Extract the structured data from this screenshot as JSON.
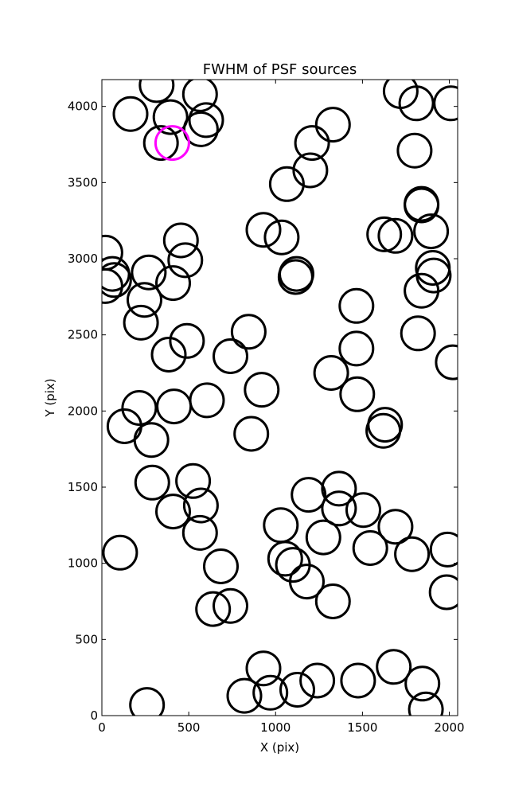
{
  "chart_data": {
    "type": "scatter",
    "title": "FWHM of PSF sources",
    "xlabel": "X (pix)",
    "ylabel": "Y (pix)",
    "xlim": [
      0,
      2048
    ],
    "ylim": [
      0,
      4176
    ],
    "xticks": [
      0,
      500,
      1000,
      1500,
      2000
    ],
    "yticks": [
      0,
      500,
      1000,
      1500,
      2000,
      2500,
      3000,
      3500,
      4000
    ],
    "grid": false,
    "marker": "open-circle",
    "series": [
      {
        "color": "#000000",
        "points": [
          [
            165,
            3950
          ],
          [
            315,
            4140
          ],
          [
            395,
            3930
          ],
          [
            565,
            4080
          ],
          [
            570,
            3850
          ],
          [
            600,
            3910
          ],
          [
            340,
            3760
          ],
          [
            20,
            3040
          ],
          [
            20,
            2820
          ],
          [
            60,
            2900
          ],
          [
            70,
            2860
          ],
          [
            270,
            2910
          ],
          [
            245,
            2730
          ],
          [
            225,
            2580
          ],
          [
            455,
            3120
          ],
          [
            480,
            2990
          ],
          [
            410,
            2840
          ],
          [
            385,
            2370
          ],
          [
            490,
            2460
          ],
          [
            740,
            2360
          ],
          [
            845,
            2520
          ],
          [
            920,
            2140
          ],
          [
            215,
            2020
          ],
          [
            415,
            2030
          ],
          [
            605,
            2070
          ],
          [
            130,
            1900
          ],
          [
            285,
            1810
          ],
          [
            860,
            1850
          ],
          [
            290,
            1530
          ],
          [
            525,
            1540
          ],
          [
            570,
            1380
          ],
          [
            410,
            1340
          ],
          [
            565,
            1200
          ],
          [
            685,
            980
          ],
          [
            105,
            1070
          ],
          [
            640,
            700
          ],
          [
            740,
            720
          ],
          [
            260,
            70
          ],
          [
            1030,
            1250
          ],
          [
            1055,
            1030
          ],
          [
            1100,
            990
          ],
          [
            1180,
            880
          ],
          [
            1190,
            1450
          ],
          [
            1275,
            1170
          ],
          [
            1365,
            1490
          ],
          [
            1365,
            1360
          ],
          [
            1505,
            1350
          ],
          [
            1545,
            1100
          ],
          [
            1690,
            1240
          ],
          [
            1785,
            1060
          ],
          [
            1990,
            1090
          ],
          [
            1985,
            810
          ],
          [
            1330,
            750
          ],
          [
            930,
            310
          ],
          [
            820,
            130
          ],
          [
            970,
            150
          ],
          [
            1125,
            170
          ],
          [
            1240,
            230
          ],
          [
            1475,
            230
          ],
          [
            1680,
            320
          ],
          [
            1845,
            210
          ],
          [
            1865,
            40
          ],
          [
            930,
            3190
          ],
          [
            1035,
            3140
          ],
          [
            1115,
            2880
          ],
          [
            1120,
            2900
          ],
          [
            1065,
            3490
          ],
          [
            1200,
            3580
          ],
          [
            1210,
            3760
          ],
          [
            1330,
            3880
          ],
          [
            1465,
            2690
          ],
          [
            1465,
            2410
          ],
          [
            1470,
            2110
          ],
          [
            1320,
            2250
          ],
          [
            1630,
            1910
          ],
          [
            1620,
            1870
          ],
          [
            1625,
            3160
          ],
          [
            1690,
            3150
          ],
          [
            1840,
            3360
          ],
          [
            1840,
            3350
          ],
          [
            1895,
            3180
          ],
          [
            1905,
            2940
          ],
          [
            1910,
            2890
          ],
          [
            1840,
            2790
          ],
          [
            1820,
            2510
          ],
          [
            1720,
            4100
          ],
          [
            1810,
            4020
          ],
          [
            2010,
            4020
          ],
          [
            1800,
            3710
          ],
          [
            2020,
            2320
          ]
        ]
      },
      {
        "color": "#ff00ff",
        "points": [
          [
            405,
            3760
          ]
        ]
      }
    ]
  }
}
